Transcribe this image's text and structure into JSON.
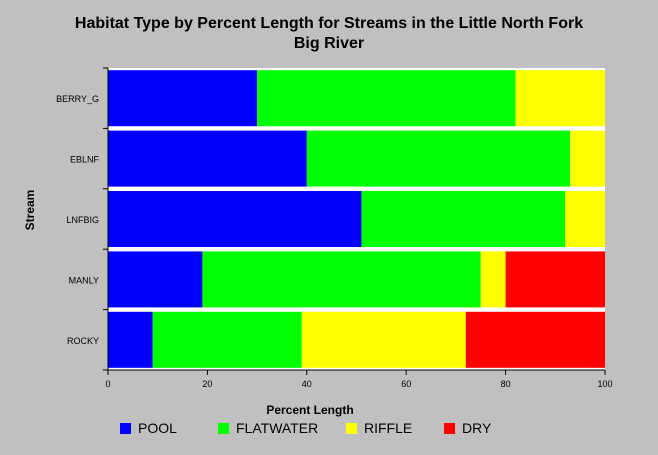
{
  "chart_data": {
    "type": "bar",
    "orientation": "horizontal",
    "stacked": true,
    "title_line1": "Habitat Type by Percent Length for Streams in the Little North Fork",
    "title_line2": "Big River",
    "xlabel": "Percent Length",
    "ylabel": "Stream",
    "xlim": [
      0,
      100
    ],
    "xticks": [
      0,
      20,
      40,
      60,
      80,
      100
    ],
    "categories": [
      "BERRY_G",
      "EBLNF",
      "LNFBIG",
      "MANLY",
      "ROCKY"
    ],
    "series": [
      {
        "name": "POOL",
        "color": "#0000ff",
        "values": [
          30,
          40,
          51,
          19,
          9
        ]
      },
      {
        "name": "FLATWATER",
        "color": "#00ff00",
        "values": [
          52,
          53,
          41,
          56,
          30
        ]
      },
      {
        "name": "RIFFLE",
        "color": "#ffff00",
        "values": [
          18,
          7,
          8,
          5,
          33
        ]
      },
      {
        "name": "DRY",
        "color": "#ff0000",
        "values": [
          0,
          0,
          0,
          20,
          28
        ]
      }
    ],
    "grid": false,
    "legend_position": "bottom"
  }
}
